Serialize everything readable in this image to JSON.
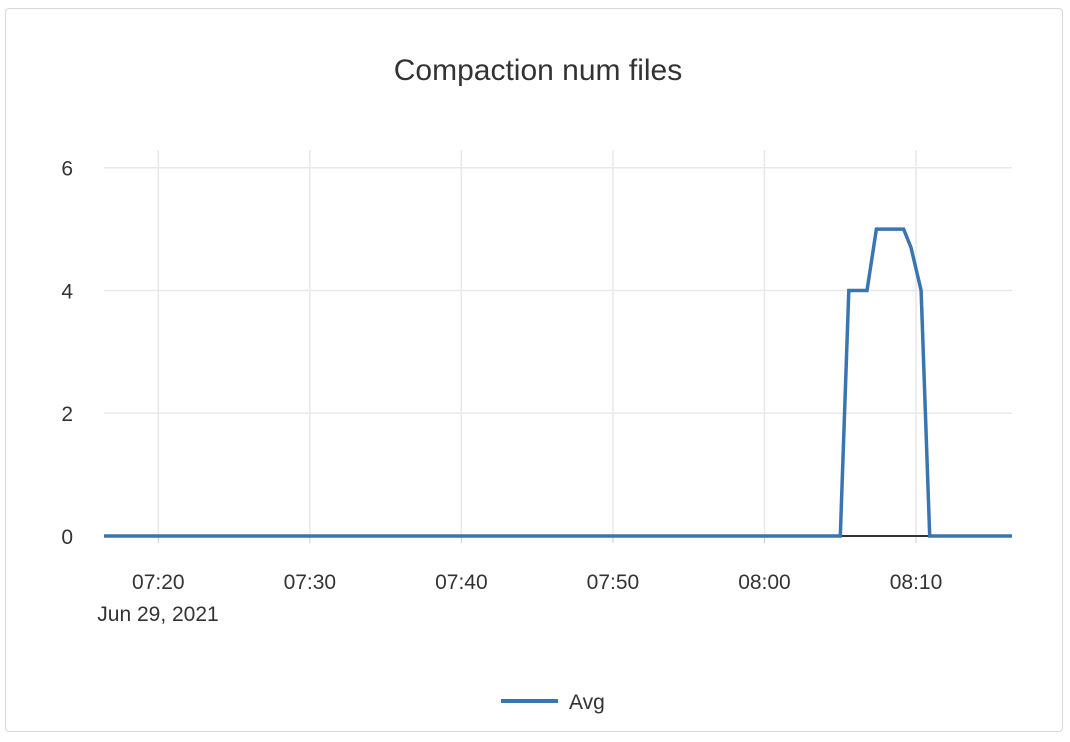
{
  "chart_data": {
    "type": "line",
    "title": "Compaction num files",
    "xlabel": "",
    "ylabel": "",
    "date_label": "Jun 29, 2021",
    "xlim": [
      "07:16:25",
      "08:16:20"
    ],
    "ylim": [
      0,
      6.5
    ],
    "y_ticks": [
      0,
      2,
      4,
      6
    ],
    "x_ticks": [
      "07:20",
      "07:30",
      "07:40",
      "07:50",
      "08:00",
      "08:10"
    ],
    "grid": true,
    "legend_position": "bottom",
    "series": [
      {
        "name": "Avg",
        "color": "#3a75b0",
        "points": [
          [
            "07:16:25",
            0
          ],
          [
            "08:05:00",
            0
          ],
          [
            "08:05:34",
            4
          ],
          [
            "08:06:46",
            4
          ],
          [
            "08:07:23",
            5
          ],
          [
            "08:09:11",
            5
          ],
          [
            "08:09:40",
            4.7
          ],
          [
            "08:10:20",
            4
          ],
          [
            "08:10:54",
            0
          ],
          [
            "08:16:20",
            0
          ]
        ]
      }
    ]
  }
}
